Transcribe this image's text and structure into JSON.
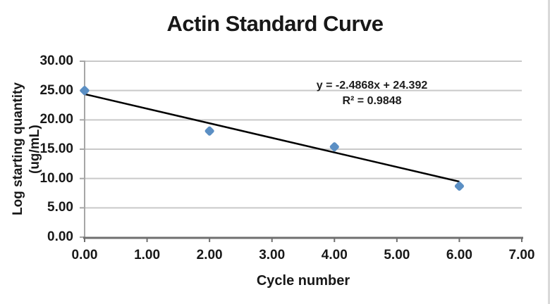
{
  "chart": {
    "title": "Actin Standard Curve",
    "x_axis_title": "Cycle number",
    "y_axis_title": "Log starting quantity (ug/mL)",
    "equation_line1": "y = -2.4868x + 24.392",
    "equation_line2": "R² = 0.9848"
  },
  "chart_data": {
    "type": "scatter",
    "title": "Actin Standard Curve",
    "xlabel": "Cycle number",
    "ylabel": "Log starting quantity (ug/mL)",
    "xlim": [
      0,
      7
    ],
    "ylim": [
      0,
      30
    ],
    "x_ticks": [
      0,
      1,
      2,
      3,
      4,
      5,
      6,
      7
    ],
    "x_tick_labels": [
      "0.00",
      "1.00",
      "2.00",
      "3.00",
      "4.00",
      "5.00",
      "6.00",
      "7.00"
    ],
    "y_ticks": [
      0,
      5,
      10,
      15,
      20,
      25,
      30
    ],
    "y_tick_labels": [
      "0.00",
      "5.00",
      "10.00",
      "15.00",
      "20.00",
      "25.00",
      "30.00"
    ],
    "grid": "horizontal",
    "legend": "none",
    "series": [
      {
        "marker": "diamond",
        "points": [
          {
            "x": 0,
            "y": 25.0
          },
          {
            "x": 2,
            "y": 18.1
          },
          {
            "x": 4,
            "y": 15.4
          },
          {
            "x": 6,
            "y": 8.7
          }
        ]
      }
    ],
    "trendline": {
      "slope": -2.4868,
      "intercept": 24.392,
      "r_squared": 0.9848,
      "x_start": 0,
      "x_end": 6,
      "equation_text": "y = -2.4868x + 24.392",
      "r_squared_text": "R² = 0.9848"
    },
    "colors": {
      "marker": "#5b8fc4",
      "trendline": "#000000",
      "gridline": "#c9c9c9",
      "y_axis_line": "#a6a6a6",
      "x_axis_line": "#6f6f6f",
      "text": "#181818"
    }
  }
}
